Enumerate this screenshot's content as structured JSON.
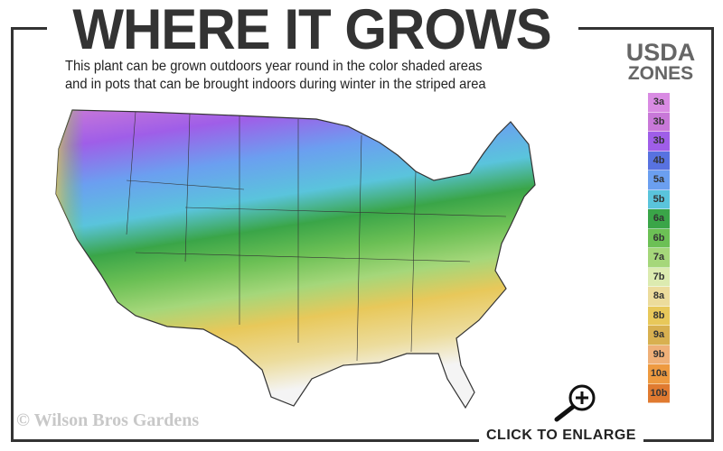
{
  "header": {
    "title": "WHERE IT GROWS",
    "subtitle_line1": "This plant can be grown outdoors year round in the color shaded areas",
    "subtitle_line2": "and in pots that can be brought indoors during winter in the striped area"
  },
  "legend": {
    "title_line1": "USDA",
    "title_line2": "ZONES",
    "zones": [
      {
        "label": "3a",
        "color": "#d98be3"
      },
      {
        "label": "3b",
        "color": "#c878d8"
      },
      {
        "label": "3b",
        "color": "#9f5ee8"
      },
      {
        "label": "4b",
        "color": "#5872e0"
      },
      {
        "label": "5a",
        "color": "#6b9ff0"
      },
      {
        "label": "5b",
        "color": "#5ac4dc"
      },
      {
        "label": "6a",
        "color": "#3aa548"
      },
      {
        "label": "6b",
        "color": "#6cc055"
      },
      {
        "label": "7a",
        "color": "#a5d77a"
      },
      {
        "label": "7b",
        "color": "#dcebb0"
      },
      {
        "label": "8a",
        "color": "#ecdc9c"
      },
      {
        "label": "8b",
        "color": "#e8c85a"
      },
      {
        "label": "9a",
        "color": "#d8b050"
      },
      {
        "label": "9b",
        "color": "#efb078"
      },
      {
        "label": "10a",
        "color": "#ee9a40"
      },
      {
        "label": "10b",
        "color": "#e07a30"
      }
    ]
  },
  "footer": {
    "watermark": "© Wilson Bros Gardens",
    "enlarge_label": "CLICK TO ENLARGE",
    "enlarge_icon": "magnifier-plus-icon"
  }
}
